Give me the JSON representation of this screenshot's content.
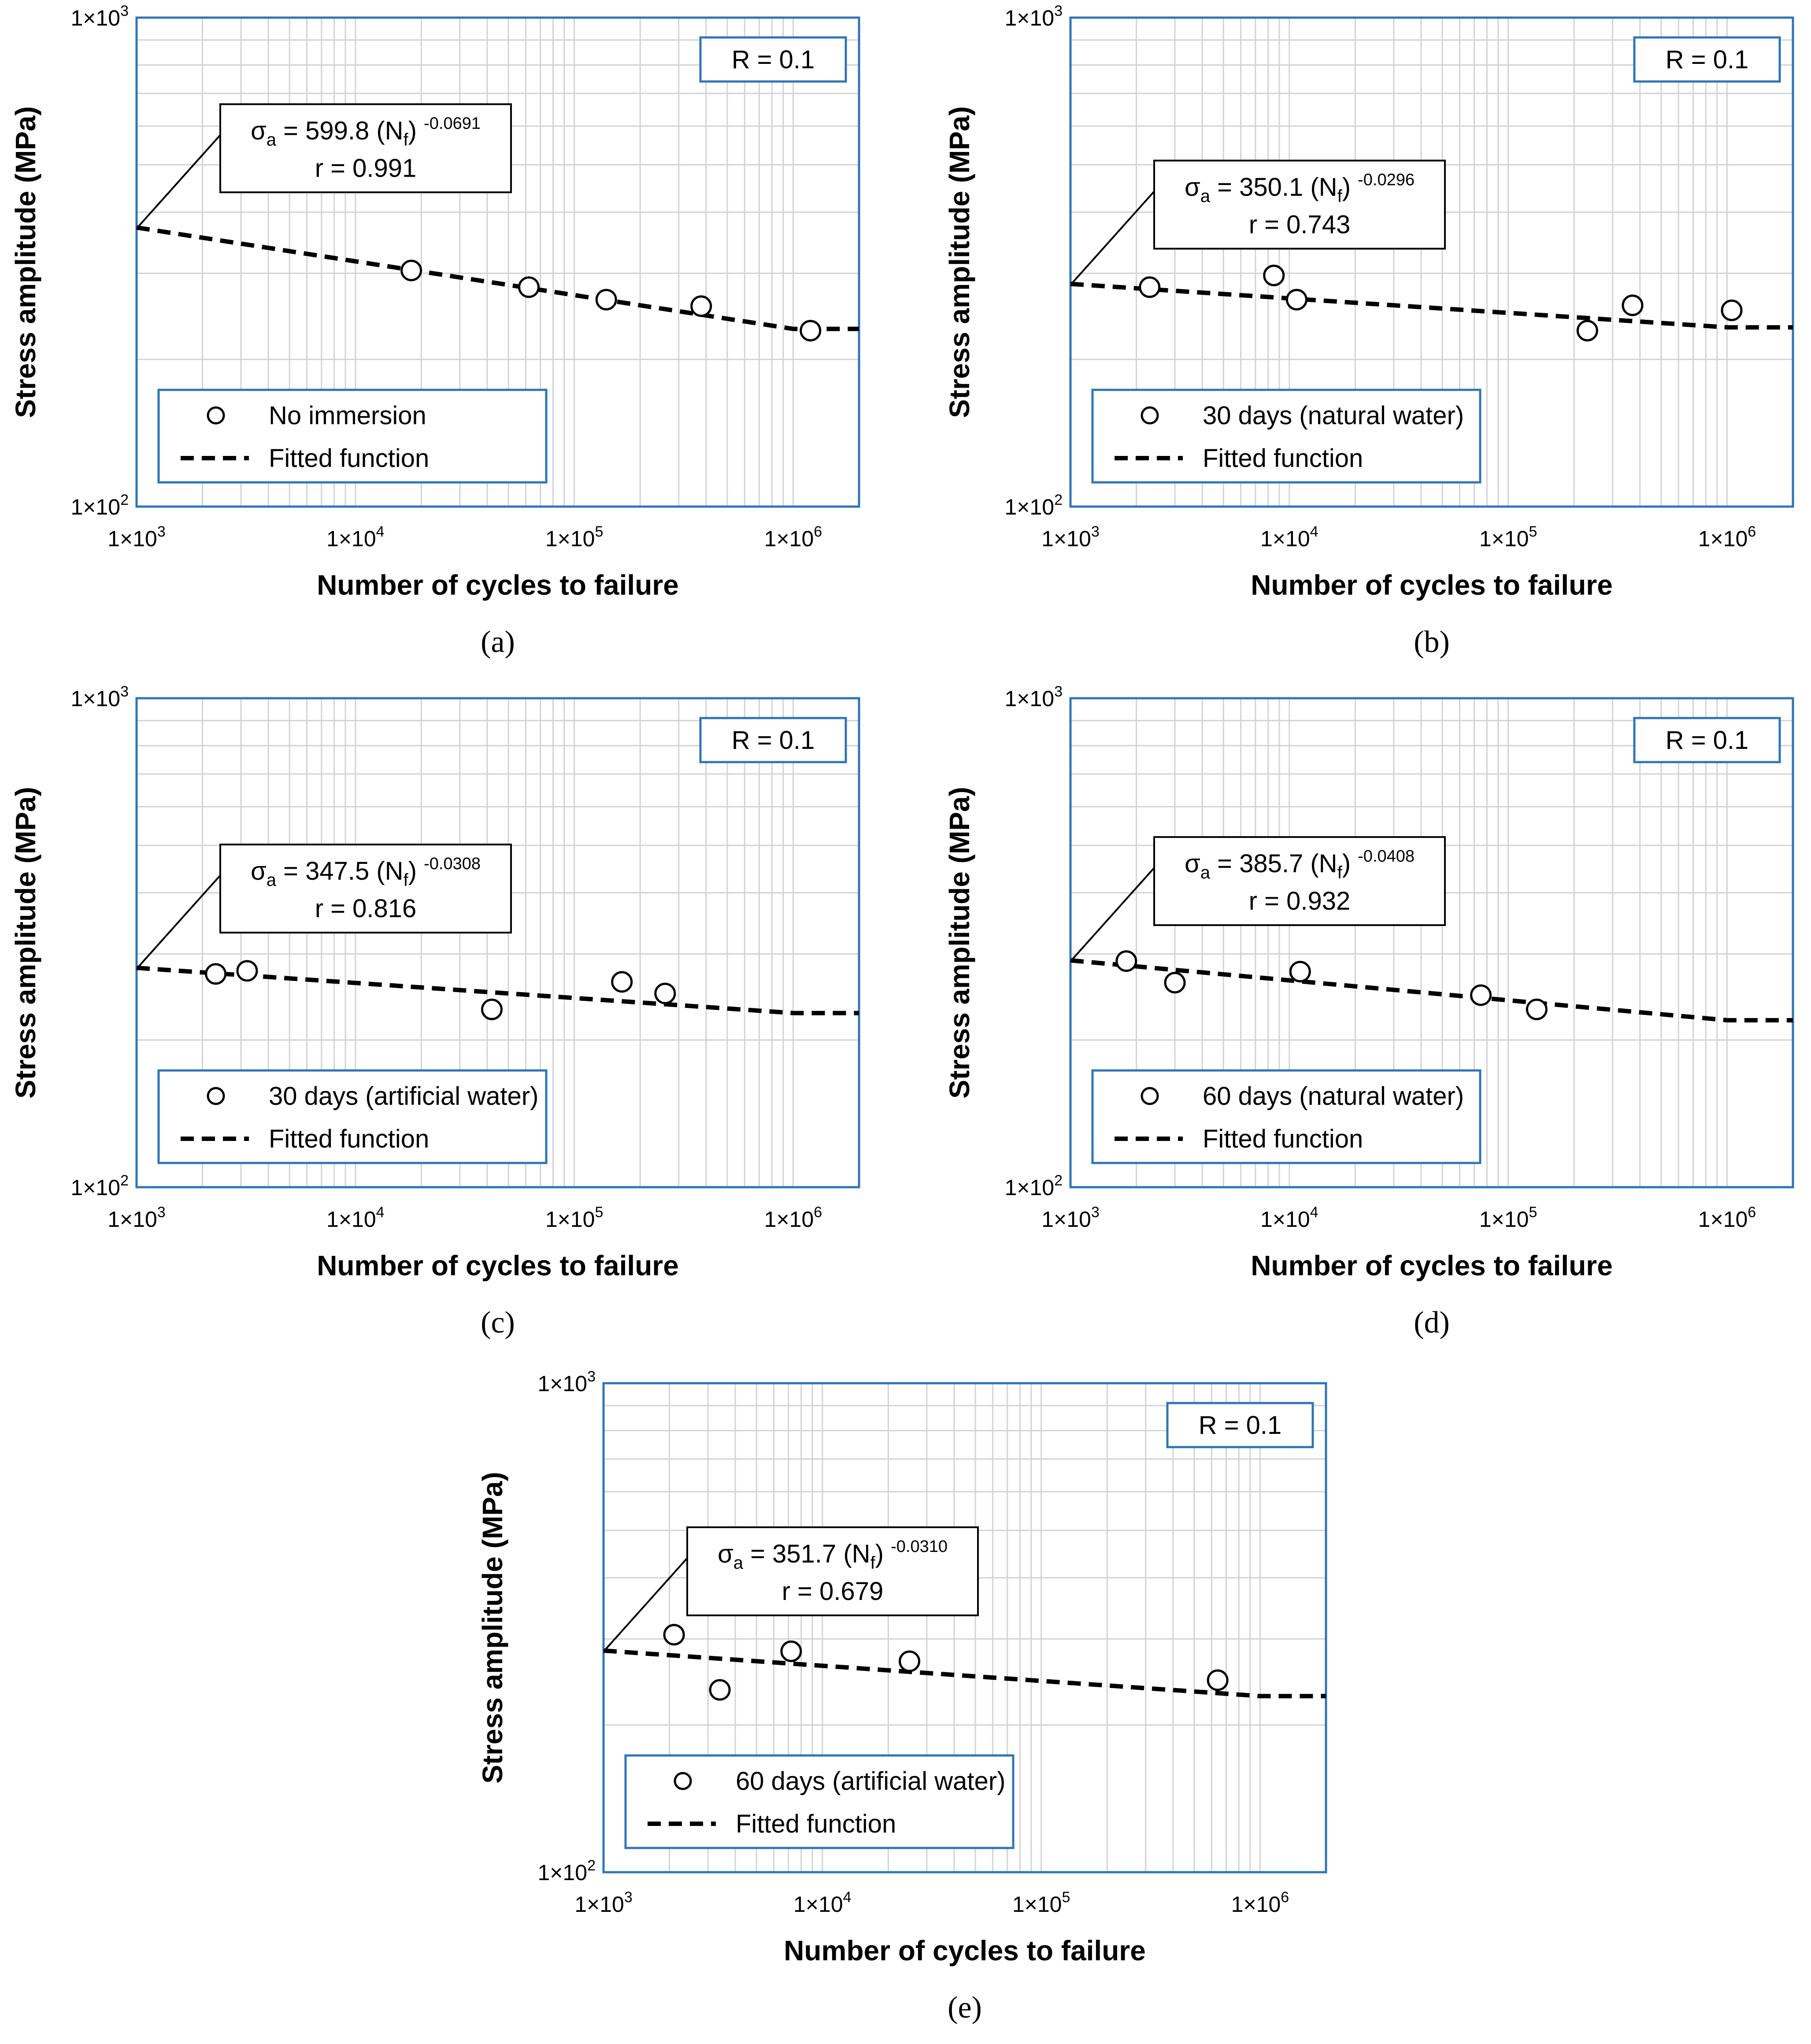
{
  "chart_data": [
    {
      "type": "scatter",
      "panel_label": "(a)",
      "xlabel": "Number of cycles to failure",
      "ylabel": "Stress amplitude (MPa)",
      "x_scale": "log",
      "y_scale": "log",
      "xlim": [
        1000,
        2000000
      ],
      "ylim": [
        100,
        1000
      ],
      "x_ticks": [
        {
          "value": 1000,
          "mant": "1×10",
          "exp": "3"
        },
        {
          "value": 10000,
          "mant": "1×10",
          "exp": "4"
        },
        {
          "value": 100000,
          "mant": "1×10",
          "exp": "5"
        },
        {
          "value": 1000000,
          "mant": "1×10",
          "exp": "6"
        }
      ],
      "y_ticks": [
        {
          "value": 100,
          "mant": "1×10",
          "exp": "2"
        },
        {
          "value": 1000,
          "mant": "1×10",
          "exp": "3"
        }
      ],
      "ratio_label": "R = 0.1",
      "equation": {
        "sigma": "σ",
        "sub_a": "a",
        "mid": " = 599.8 (N",
        "sub_f": "f",
        "close": ")",
        "exponent": "-0.0691",
        "r_text": "r = 0.991"
      },
      "fit": {
        "coef": 599.8,
        "b": -0.0691,
        "plateau_from": 1000000
      },
      "legend": {
        "marker_label": "No immersion",
        "line_label": "Fitted function"
      },
      "points": [
        {
          "x": 18000,
          "y": 304
        },
        {
          "x": 62000,
          "y": 281
        },
        {
          "x": 140000,
          "y": 265
        },
        {
          "x": 380000,
          "y": 257
        },
        {
          "x": 1200000,
          "y": 229
        }
      ]
    },
    {
      "type": "scatter",
      "panel_label": "(b)",
      "xlabel": "Number of cycles to failure",
      "ylabel": "Stress amplitude (MPa)",
      "x_scale": "log",
      "y_scale": "log",
      "xlim": [
        1000,
        2000000
      ],
      "ylim": [
        100,
        1000
      ],
      "x_ticks": [
        {
          "value": 1000,
          "mant": "1×10",
          "exp": "3"
        },
        {
          "value": 10000,
          "mant": "1×10",
          "exp": "4"
        },
        {
          "value": 100000,
          "mant": "1×10",
          "exp": "5"
        },
        {
          "value": 1000000,
          "mant": "1×10",
          "exp": "6"
        }
      ],
      "y_ticks": [
        {
          "value": 100,
          "mant": "1×10",
          "exp": "2"
        },
        {
          "value": 1000,
          "mant": "1×10",
          "exp": "3"
        }
      ],
      "ratio_label": "R = 0.1",
      "equation": {
        "sigma": "σ",
        "sub_a": "a",
        "mid": " = 350.1 (N",
        "sub_f": "f",
        "close": ")",
        "exponent": "-0.0296",
        "r_text": "r = 0.743"
      },
      "fit": {
        "coef": 350.1,
        "b": -0.0296,
        "plateau_from": 1000000
      },
      "legend": {
        "marker_label": "30 days (natural water)",
        "line_label": "Fitted function"
      },
      "points": [
        {
          "x": 2300,
          "y": 281
        },
        {
          "x": 8500,
          "y": 297
        },
        {
          "x": 10800,
          "y": 265
        },
        {
          "x": 230000,
          "y": 229
        },
        {
          "x": 370000,
          "y": 258
        },
        {
          "x": 1050000,
          "y": 252
        }
      ]
    },
    {
      "type": "scatter",
      "panel_label": "(c)",
      "xlabel": "Number of cycles to failure",
      "ylabel": "Stress amplitude (MPa)",
      "x_scale": "log",
      "y_scale": "log",
      "xlim": [
        1000,
        2000000
      ],
      "ylim": [
        100,
        1000
      ],
      "x_ticks": [
        {
          "value": 1000,
          "mant": "1×10",
          "exp": "3"
        },
        {
          "value": 10000,
          "mant": "1×10",
          "exp": "4"
        },
        {
          "value": 100000,
          "mant": "1×10",
          "exp": "5"
        },
        {
          "value": 1000000,
          "mant": "1×10",
          "exp": "6"
        }
      ],
      "y_ticks": [
        {
          "value": 100,
          "mant": "1×10",
          "exp": "2"
        },
        {
          "value": 1000,
          "mant": "1×10",
          "exp": "3"
        }
      ],
      "ratio_label": "R = 0.1",
      "equation": {
        "sigma": "σ",
        "sub_a": "a",
        "mid": " = 347.5 (N",
        "sub_f": "f",
        "close": ")",
        "exponent": "-0.0308",
        "r_text": "r = 0.816"
      },
      "fit": {
        "coef": 347.5,
        "b": -0.0308,
        "plateau_from": 1000000
      },
      "legend": {
        "marker_label": "30 days (artificial water)",
        "line_label": "Fitted function"
      },
      "points": [
        {
          "x": 2300,
          "y": 273
        },
        {
          "x": 3200,
          "y": 277
        },
        {
          "x": 42000,
          "y": 231
        },
        {
          "x": 165000,
          "y": 263
        },
        {
          "x": 260000,
          "y": 249
        }
      ]
    },
    {
      "type": "scatter",
      "panel_label": "(d)",
      "xlabel": "Number of cycles to failure",
      "ylabel": "Stress amplitude (MPa)",
      "x_scale": "log",
      "y_scale": "log",
      "xlim": [
        1000,
        2000000
      ],
      "ylim": [
        100,
        1000
      ],
      "x_ticks": [
        {
          "value": 1000,
          "mant": "1×10",
          "exp": "3"
        },
        {
          "value": 10000,
          "mant": "1×10",
          "exp": "4"
        },
        {
          "value": 100000,
          "mant": "1×10",
          "exp": "5"
        },
        {
          "value": 1000000,
          "mant": "1×10",
          "exp": "6"
        }
      ],
      "y_ticks": [
        {
          "value": 100,
          "mant": "1×10",
          "exp": "2"
        },
        {
          "value": 1000,
          "mant": "1×10",
          "exp": "3"
        }
      ],
      "ratio_label": "R = 0.1",
      "equation": {
        "sigma": "σ",
        "sub_a": "a",
        "mid": " = 385.7 (N",
        "sub_f": "f",
        "close": ")",
        "exponent": "-0.0408",
        "r_text": "r = 0.932"
      },
      "fit": {
        "coef": 385.7,
        "b": -0.0408,
        "plateau_from": 1000000
      },
      "legend": {
        "marker_label": "60 days (natural water)",
        "line_label": "Fitted function"
      },
      "points": [
        {
          "x": 1800,
          "y": 290
        },
        {
          "x": 3000,
          "y": 262
        },
        {
          "x": 11200,
          "y": 276
        },
        {
          "x": 75000,
          "y": 247
        },
        {
          "x": 135000,
          "y": 231
        }
      ]
    },
    {
      "type": "scatter",
      "panel_label": "(e)",
      "xlabel": "Number of cycles to failure",
      "ylabel": "Stress amplitude (MPa)",
      "x_scale": "log",
      "y_scale": "log",
      "xlim": [
        1000,
        2000000
      ],
      "ylim": [
        100,
        1000
      ],
      "x_ticks": [
        {
          "value": 1000,
          "mant": "1×10",
          "exp": "3"
        },
        {
          "value": 10000,
          "mant": "1×10",
          "exp": "4"
        },
        {
          "value": 100000,
          "mant": "1×10",
          "exp": "5"
        },
        {
          "value": 1000000,
          "mant": "1×10",
          "exp": "6"
        }
      ],
      "y_ticks": [
        {
          "value": 100,
          "mant": "1×10",
          "exp": "2"
        },
        {
          "value": 1000,
          "mant": "1×10",
          "exp": "3"
        }
      ],
      "ratio_label": "R = 0.1",
      "equation": {
        "sigma": "σ",
        "sub_a": "a",
        "mid": " = 351.7 (N",
        "sub_f": "f",
        "close": ")",
        "exponent": "-0.0310",
        "r_text": "r = 0.679"
      },
      "fit": {
        "coef": 351.7,
        "b": -0.031,
        "plateau_from": 1000000
      },
      "legend": {
        "marker_label": "60 days (artificial water)",
        "line_label": "Fitted function"
      },
      "points": [
        {
          "x": 2100,
          "y": 306
        },
        {
          "x": 3400,
          "y": 236
        },
        {
          "x": 7200,
          "y": 283
        },
        {
          "x": 25000,
          "y": 270
        },
        {
          "x": 640000,
          "y": 247
        }
      ]
    }
  ]
}
